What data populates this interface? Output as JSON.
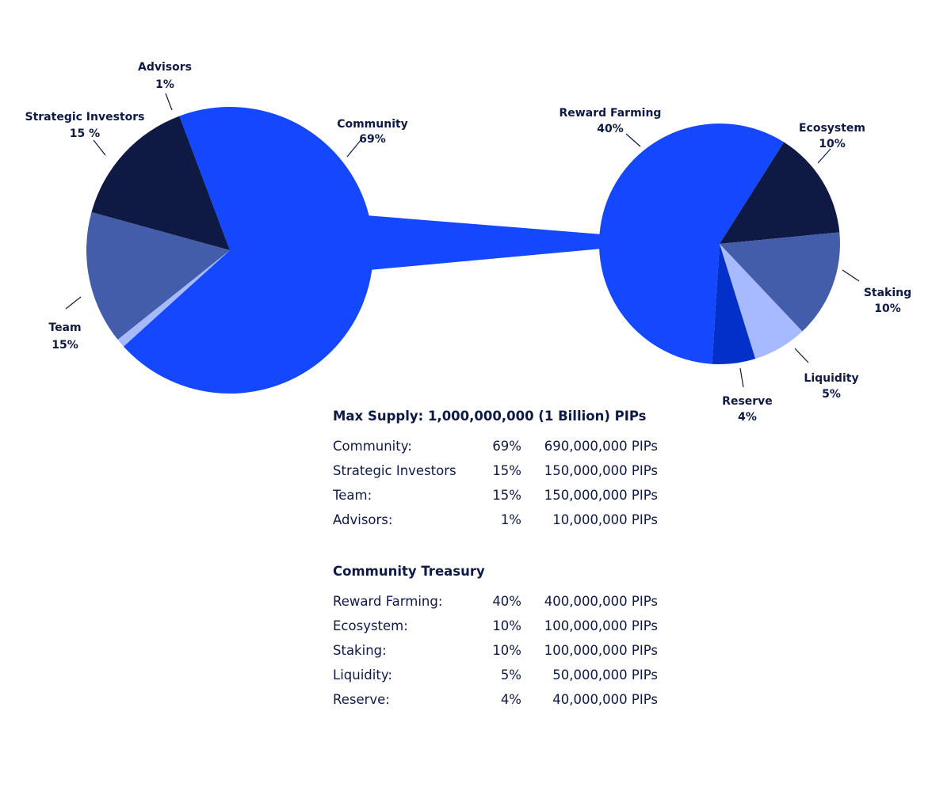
{
  "colors": {
    "community": "#1448ff",
    "strategic": "#445daa",
    "team": "#0f1a44",
    "advisors": "#a7b9ff",
    "reward": "#1448ff",
    "ecosystem": "#0f1a44",
    "staking": "#445daa",
    "liquidity": "#a7b9ff",
    "reserve": "#0330c8",
    "text": "#0f1a44"
  },
  "chart_data": [
    {
      "type": "pie",
      "title": "",
      "slices": [
        {
          "key": "community",
          "label": "Community",
          "value_text": "69%",
          "value": 69
        },
        {
          "key": "advisors",
          "label": "Advisors",
          "value_text": "1%",
          "value": 1
        },
        {
          "key": "strategic",
          "label": "Strategic Investors",
          "value_text": "15 %",
          "value": 15
        },
        {
          "key": "team",
          "label": "Team",
          "value_text": "15%",
          "value": 15
        }
      ]
    },
    {
      "type": "pie",
      "title": "",
      "slices": [
        {
          "key": "reward",
          "label": "Reward Farming",
          "value_text": "40%",
          "value": 40
        },
        {
          "key": "ecosystem",
          "label": "Ecosystem",
          "value_text": "10%",
          "value": 10
        },
        {
          "key": "staking",
          "label": "Staking",
          "value_text": "10%",
          "value": 10
        },
        {
          "key": "liquidity",
          "label": "Liquidity",
          "value_text": "5%",
          "value": 5
        },
        {
          "key": "reserve",
          "label": "Reserve",
          "value_text": "4%",
          "value": 4
        }
      ]
    }
  ],
  "supply": {
    "title": "Max Supply: 1,000,000,000 (1 Billion) PIPs",
    "rows": [
      {
        "label": "Community:",
        "pct": "69%",
        "amount": "690,000,000 PIPs"
      },
      {
        "label": "Strategic Investors",
        "pct": "15%",
        "amount": "150,000,000 PIPs"
      },
      {
        "label": "Team:",
        "pct": "15%",
        "amount": "150,000,000 PIPs"
      },
      {
        "label": "Advisors:",
        "pct": "1%",
        "amount": "10,000,000 PIPs"
      }
    ]
  },
  "treasury": {
    "title": "Community Treasury",
    "rows": [
      {
        "label": "Reward Farming:",
        "pct": "40%",
        "amount": "400,000,000 PIPs"
      },
      {
        "label": "Ecosystem:",
        "pct": "10%",
        "amount": "100,000,000 PIPs"
      },
      {
        "label": "Staking:",
        "pct": "10%",
        "amount": "100,000,000 PIPs"
      },
      {
        "label": "Liquidity:",
        "pct": "5%",
        "amount": "50,000,000 PIPs"
      },
      {
        "label": "Reserve:",
        "pct": "4%",
        "amount": "40,000,000 PIPs"
      }
    ]
  }
}
